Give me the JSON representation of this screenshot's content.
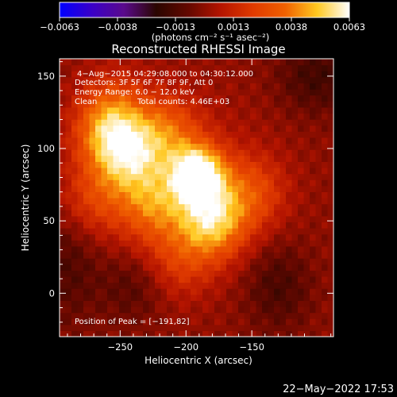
{
  "chart_data": {
    "type": "heatmap",
    "title": "Reconstructed RHESSI Image",
    "xlabel": "Heliocentric X (arcsec)",
    "ylabel": "Heliocentric Y (arcsec)",
    "xlim": [
      -296,
      -88
    ],
    "ylim": [
      -30,
      162
    ],
    "x_ticks": [
      -250,
      -200,
      -150
    ],
    "y_ticks": [
      0,
      50,
      100,
      150
    ],
    "colorbar": {
      "range": [
        -0.0063,
        0.0063
      ],
      "ticks": [
        "−0.0063",
        "−0.0038",
        "−0.0013",
        "0.0013",
        "0.0038",
        "0.0063"
      ],
      "unit_label": "(photons cm⁻² s⁻¹ asec⁻²)",
      "colormap": [
        "#0000ff",
        "#3a00c8",
        "#5a0a8c",
        "#2a0600",
        "#640800",
        "#b41400",
        "#e03a00",
        "#f06000",
        "#ffc820",
        "#ffffff"
      ]
    },
    "annotations": {
      "time_range": "4−Aug−2015 04:29:08.000 to 04:30:12.000",
      "detectors": "Detectors: 3F 5F 6F 7F 8F 9F, Att 0",
      "energy": "Energy Range: 6.0 − 12.0 keV",
      "method": "Clean",
      "counts": "Total counts: 4.46E+03",
      "peak": "Position of Peak = [−191,82]"
    },
    "peak": {
      "x": -191,
      "y": 82,
      "value": 0.0063
    },
    "sources": [
      {
        "x": -191,
        "y": 82,
        "amp": 1.0
      },
      {
        "x": -180,
        "y": 50,
        "amp": 0.7
      },
      {
        "x": -243,
        "y": 95,
        "amp": 0.55
      },
      {
        "x": -260,
        "y": 110,
        "amp": 0.5
      },
      {
        "x": -225,
        "y": 62,
        "amp": 0.45
      },
      {
        "x": -215,
        "y": 112,
        "amp": 0.4
      },
      {
        "x": -150,
        "y": 70,
        "amp": 0.35
      },
      {
        "x": -270,
        "y": 65,
        "amp": 0.3
      },
      {
        "x": -205,
        "y": 22,
        "amp": 0.25
      },
      {
        "x": -255,
        "y": 130,
        "amp": 0.3
      }
    ]
  },
  "footer": {
    "timestamp": "22−May−2022 17:53"
  }
}
